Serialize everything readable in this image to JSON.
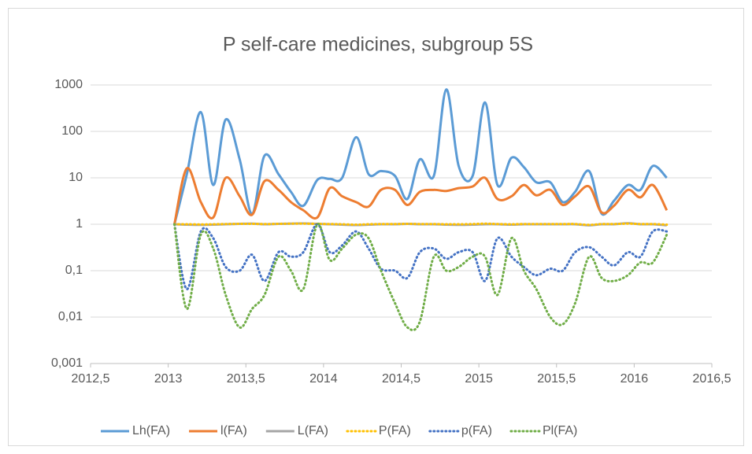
{
  "chart_data": {
    "type": "line",
    "title": "P self-care medicines, subgroup 5S",
    "x": [
      2013.04,
      2013.12,
      2013.21,
      2013.29,
      2013.37,
      2013.46,
      2013.54,
      2013.62,
      2013.71,
      2013.79,
      2013.87,
      2013.96,
      2014.04,
      2014.12,
      2014.21,
      2014.29,
      2014.37,
      2014.46,
      2014.54,
      2014.62,
      2014.71,
      2014.79,
      2014.87,
      2014.96,
      2015.04,
      2015.12,
      2015.21,
      2015.29,
      2015.37,
      2015.46,
      2015.54,
      2015.62,
      2015.71,
      2015.79,
      2015.87,
      2015.96,
      2016.04,
      2016.12,
      2016.21
    ],
    "series": [
      {
        "name": "Lh(FA)",
        "color": "#5b9bd5",
        "style": "solid",
        "values": [
          1,
          12,
          260,
          7,
          180,
          25,
          1.7,
          30,
          12,
          5,
          2.5,
          9,
          9.5,
          10,
          75,
          12,
          14,
          11,
          3.5,
          25,
          11,
          800,
          18,
          11,
          420,
          7,
          27,
          17,
          8,
          8,
          3,
          5,
          14,
          1.7,
          3.2,
          7,
          5.5,
          18,
          10
        ]
      },
      {
        "name": "l(FA)",
        "color": "#ed7d31",
        "style": "solid",
        "values": [
          1,
          16,
          3,
          1.4,
          10,
          4,
          1.6,
          8.5,
          5.5,
          3,
          2,
          1.4,
          6,
          4,
          3,
          2.4,
          5.5,
          5.5,
          2.6,
          5,
          5.5,
          5.2,
          6,
          6.5,
          10,
          3.5,
          4,
          7,
          4.2,
          5.5,
          2.6,
          4,
          6.5,
          1.8,
          2.5,
          5.5,
          3.8,
          7,
          2
        ]
      },
      {
        "name": "L(FA)",
        "color": "#a5a5a5",
        "style": "solid",
        "values": [
          1,
          0.98,
          0.97,
          0.98,
          1,
          1.02,
          1.03,
          1,
          1.02,
          1.03,
          1.04,
          1.02,
          1,
          0.98,
          0.96,
          0.98,
          1,
          1,
          1.02,
          1,
          1,
          0.98,
          0.97,
          0.98,
          1,
          1,
          0.98,
          1,
          1,
          1,
          1,
          1,
          0.95,
          1,
          1,
          1.05,
          1,
          1,
          0.95
        ]
      },
      {
        "name": "P(FA)",
        "color": "#ffc000",
        "style": "dotted",
        "values": [
          1,
          1,
          0.99,
          1,
          1.01,
          1.02,
          1.02,
          1.01,
          1.02,
          1.03,
          1.03,
          1.02,
          1.01,
          1,
          0.98,
          1,
          1.01,
          1.01,
          1.02,
          1.01,
          1.01,
          1,
          1,
          1.01,
          1.03,
          1.01,
          1,
          1.01,
          1.01,
          1.01,
          1.01,
          1.01,
          0.97,
          1.01,
          1.01,
          1.03,
          1.01,
          1.01,
          0.98
        ]
      },
      {
        "name": "p(FA)",
        "color": "#4472c4",
        "style": "dotted",
        "values": [
          1,
          0.04,
          0.7,
          0.5,
          0.12,
          0.1,
          0.22,
          0.06,
          0.25,
          0.2,
          0.25,
          1,
          0.25,
          0.35,
          0.7,
          0.3,
          0.11,
          0.1,
          0.07,
          0.25,
          0.3,
          0.18,
          0.25,
          0.25,
          0.06,
          0.5,
          0.2,
          0.12,
          0.08,
          0.11,
          0.1,
          0.25,
          0.32,
          0.2,
          0.13,
          0.25,
          0.2,
          0.7,
          0.7
        ]
      },
      {
        "name": "Pl(FA)",
        "color": "#70ad47",
        "style": "dotted",
        "values": [
          1,
          0.015,
          0.6,
          0.3,
          0.03,
          0.006,
          0.015,
          0.03,
          0.2,
          0.1,
          0.04,
          1,
          0.17,
          0.3,
          0.6,
          0.5,
          0.1,
          0.02,
          0.006,
          0.008,
          0.2,
          0.1,
          0.12,
          0.2,
          0.2,
          0.03,
          0.5,
          0.1,
          0.04,
          0.01,
          0.007,
          0.02,
          0.2,
          0.07,
          0.06,
          0.08,
          0.15,
          0.15,
          0.6
        ]
      }
    ],
    "xlim": [
      2012.5,
      2016.5
    ],
    "xticks": [
      {
        "value": 2012.5,
        "label": "2012,5"
      },
      2013,
      {
        "value": 2013.5,
        "label": "2013,5"
      },
      2014,
      {
        "value": 2014.5,
        "label": "2014,5"
      },
      2015,
      {
        "value": 2015.5,
        "label": "2015,5"
      },
      2016,
      {
        "value": 2016.5,
        "label": "2016,5"
      }
    ],
    "ylim": [
      0.001,
      1000
    ],
    "yticks": [
      {
        "value": 0.001,
        "label": "0,001"
      },
      {
        "value": 0.01,
        "label": "0,01"
      },
      {
        "value": 0.1,
        "label": "0,1"
      },
      1,
      10,
      100,
      1000
    ],
    "log_y": true,
    "grid": true,
    "legend": "bottom"
  }
}
